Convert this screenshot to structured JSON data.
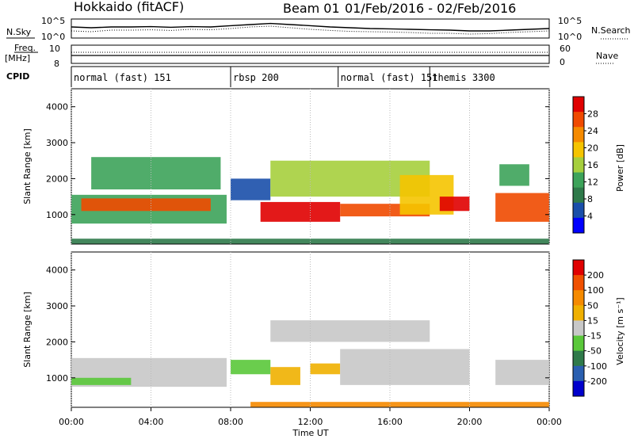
{
  "header": {
    "radar": "Hokkaido (fitACF)",
    "beam": "Beam 01",
    "date_range": "01/Feb/2016 - 02/Feb/2016"
  },
  "colors": {
    "power_scale": [
      "#0000ff",
      "#1a4faa",
      "#2f7a4a",
      "#3da35a",
      "#a6cf3d",
      "#f5c400",
      "#f58a00",
      "#f04a00",
      "#e00000"
    ],
    "velocity_scale": [
      "#0000cc",
      "#2a5fb0",
      "#2f7a4a",
      "#5ac83a",
      "#c8c8c8",
      "#f0b000",
      "#f58a00",
      "#f05000",
      "#e00000"
    ],
    "trace": "#000000"
  },
  "chart_data": [
    {
      "type": "line",
      "name": "noise-panel",
      "left_label": "N.Sky",
      "right_label": "N.Search",
      "left_ticks": [
        "10^5",
        "10^0"
      ],
      "right_ticks": [
        "10^5",
        "10^0"
      ],
      "x": [
        0,
        1,
        2,
        3,
        4,
        5,
        6,
        7,
        8,
        9,
        10,
        11,
        12,
        13,
        14,
        15,
        16,
        17,
        18,
        19,
        20,
        21,
        22,
        23,
        24
      ],
      "series": [
        {
          "values": [
            0.6,
            0.55,
            0.6,
            0.6,
            0.62,
            0.58,
            0.62,
            0.6,
            0.68,
            0.75,
            0.82,
            0.75,
            0.68,
            0.6,
            0.55,
            0.5,
            0.48,
            0.45,
            0.42,
            0.4,
            0.35,
            0.35,
            0.4,
            0.45,
            0.5
          ]
        },
        {
          "values": [
            0.35,
            0.3,
            0.4,
            0.4,
            0.42,
            0.38,
            0.45,
            0.42,
            0.5,
            0.6,
            0.65,
            0.55,
            0.45,
            0.38,
            0.32,
            0.3,
            0.28,
            0.25,
            0.2,
            0.2,
            0.15,
            0.18,
            0.25,
            0.3,
            0.35
          ]
        }
      ]
    },
    {
      "type": "line",
      "name": "freq-panel",
      "left_label_top": "Freq.",
      "left_label_unit": "[MHz]",
      "right_label": "Nave",
      "left_ticks": [
        "10",
        "8"
      ],
      "right_ticks": [
        "60",
        "0"
      ],
      "freq_mhz": 10.5,
      "nave": 30
    },
    {
      "type": "table",
      "name": "cpid-strip",
      "label": "CPID",
      "segments": [
        {
          "start_h": 0,
          "label": "normal (fast) 151"
        },
        {
          "start_h": 8,
          "label": "rbsp 200"
        },
        {
          "start_h": 13.4,
          "label": "normal (fast) 151"
        },
        {
          "start_h": 18.0,
          "label": "themis 3300"
        }
      ]
    },
    {
      "type": "heatmap",
      "name": "power-panel",
      "ylabel": "Slant Range [km]",
      "yticks": [
        "1000",
        "2000",
        "3000",
        "4000"
      ],
      "yrange_km": [
        180,
        4500
      ],
      "cbar_label": "Power [dB]",
      "cbar_ticks": [
        "4",
        "8",
        "12",
        "16",
        "20",
        "24",
        "28"
      ],
      "bands": [
        {
          "t0": 0.0,
          "t1": 7.8,
          "r0": 750,
          "r1": 1550,
          "value": 3
        },
        {
          "t0": 0.5,
          "t1": 7.0,
          "r0": 1100,
          "r1": 1450,
          "value": 7
        },
        {
          "t0": 1.0,
          "t1": 7.5,
          "r0": 1700,
          "r1": 2600,
          "value": 3
        },
        {
          "t0": 8.0,
          "t1": 10.0,
          "r0": 1400,
          "r1": 2000,
          "value": 1
        },
        {
          "t0": 9.5,
          "t1": 13.5,
          "r0": 800,
          "r1": 1350,
          "value": 8
        },
        {
          "t0": 10.0,
          "t1": 18.0,
          "r0": 1500,
          "r1": 2500,
          "value": 4
        },
        {
          "t0": 13.5,
          "t1": 18.0,
          "r0": 950,
          "r1": 1300,
          "value": 7
        },
        {
          "t0": 16.5,
          "t1": 19.2,
          "r0": 1000,
          "r1": 2100,
          "value": 5
        },
        {
          "t0": 18.5,
          "t1": 20.0,
          "r0": 1100,
          "r1": 1500,
          "value": 8
        },
        {
          "t0": 21.3,
          "t1": 24.0,
          "r0": 800,
          "r1": 1600,
          "value": 7
        },
        {
          "t0": 21.5,
          "t1": 23.0,
          "r0": 1800,
          "r1": 2400,
          "value": 3
        },
        {
          "t0": 0.0,
          "t1": 24.0,
          "r0": 190,
          "r1": 330,
          "value": 2
        }
      ]
    },
    {
      "type": "heatmap",
      "name": "velocity-panel",
      "ylabel": "Slant Range [km]",
      "yticks": [
        "1000",
        "2000",
        "3000",
        "4000"
      ],
      "yrange_km": [
        180,
        4500
      ],
      "cbar_label": "Velocity [m s⁻¹]",
      "cbar_ticks": [
        "200",
        "100",
        "50",
        "15",
        "-15",
        "-50",
        "-100",
        "-200"
      ],
      "bands": [
        {
          "t0": 0.0,
          "t1": 7.8,
          "r0": 750,
          "r1": 1550,
          "value": 4
        },
        {
          "t0": 0.0,
          "t1": 3.0,
          "r0": 800,
          "r1": 1000,
          "value": 3
        },
        {
          "t0": 8.0,
          "t1": 10.0,
          "r0": 1100,
          "r1": 1500,
          "value": 3
        },
        {
          "t0": 10.0,
          "t1": 11.5,
          "r0": 800,
          "r1": 1300,
          "value": 5
        },
        {
          "t0": 12.0,
          "t1": 13.5,
          "r0": 1100,
          "r1": 1400,
          "value": 5
        },
        {
          "t0": 10.0,
          "t1": 18.0,
          "r0": 2000,
          "r1": 2600,
          "value": 4
        },
        {
          "t0": 13.5,
          "t1": 20.0,
          "r0": 800,
          "r1": 1800,
          "value": 4
        },
        {
          "t0": 21.3,
          "t1": 24.0,
          "r0": 800,
          "r1": 1500,
          "value": 4
        },
        {
          "t0": 9.0,
          "t1": 24.0,
          "r0": 190,
          "r1": 330,
          "value": 6
        }
      ]
    }
  ],
  "x_axis": {
    "label": "Time UT",
    "ticks": [
      "00:00",
      "04:00",
      "08:00",
      "12:00",
      "16:00",
      "20:00",
      "00:00"
    ],
    "range_h": [
      0,
      24
    ]
  }
}
